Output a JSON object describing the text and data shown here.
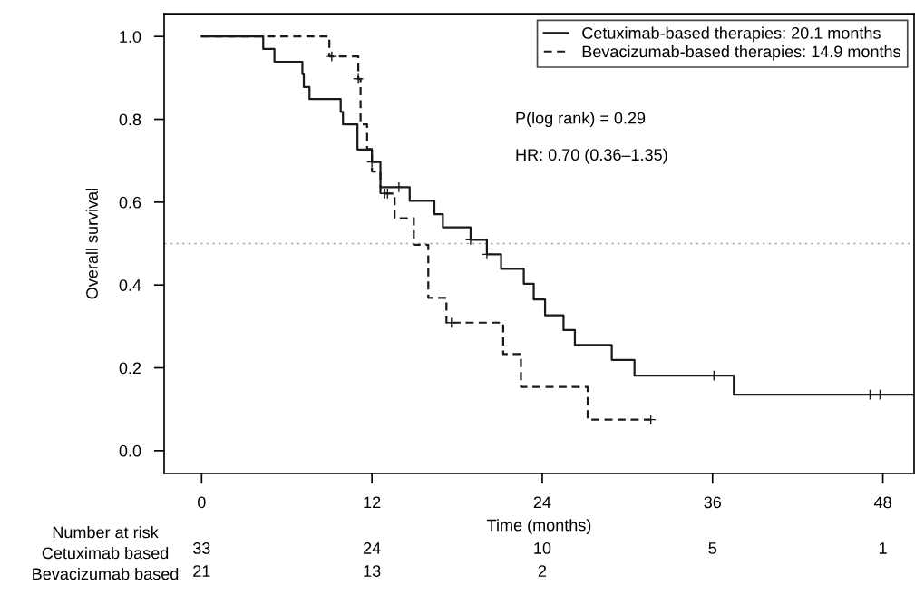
{
  "chart_data": {
    "type": "step",
    "xlabel": "Time (months)",
    "ylabel": "Overall survival",
    "xlim": [
      -2.64,
      50.2
    ],
    "ylim": [
      -0.055,
      1.055
    ],
    "xticks": [
      0,
      12,
      24,
      36,
      48
    ],
    "yticks": [
      {
        "value": 0,
        "label": "0.0"
      },
      {
        "value": 0.2,
        "label": "0.2"
      },
      {
        "value": 0.4,
        "label": "0.4"
      },
      {
        "value": 0.6,
        "label": "0.6"
      },
      {
        "value": 0.8,
        "label": "0.8"
      },
      {
        "value": 1,
        "label": "1.0"
      }
    ],
    "legend": "top right",
    "grid": false,
    "series": [
      {
        "name": "Cetuximab-based therapies: 20.1 months",
        "color": "#1a1a1a",
        "line_style": "solid",
        "x": [
          0,
          4.34,
          5.13,
          7.1,
          7.2,
          7.6,
          9.8,
          9.96,
          10.98,
          12.0,
          12.6,
          14.66,
          16.4,
          17.0,
          18.95,
          20.1,
          21.1,
          22.7,
          23.4,
          24.2,
          25.5,
          26.3,
          28.9,
          30.5,
          37.5,
          50.2
        ],
        "values": [
          1.0,
          0.97,
          0.939,
          0.909,
          0.878,
          0.849,
          0.818,
          0.788,
          0.727,
          0.697,
          0.636,
          0.603,
          0.571,
          0.539,
          0.509,
          0.474,
          0.439,
          0.403,
          0.365,
          0.327,
          0.291,
          0.255,
          0.219,
          0.181,
          0.135,
          0.135
        ]
      },
      {
        "name": "Bevacizumab-based therapies: 14.9 months",
        "color": "#1a1a1a",
        "line_style": "dashed",
        "x": [
          0,
          9.0,
          11.04,
          11.2,
          11.66,
          12.0,
          12.6,
          13.6,
          14.95,
          15.97,
          17.25,
          21.25,
          22.5,
          27.2,
          31.65
        ],
        "values": [
          1.0,
          0.952,
          0.898,
          0.788,
          0.728,
          0.674,
          0.621,
          0.561,
          0.497,
          0.369,
          0.309,
          0.233,
          0.154,
          0.075,
          0.075
        ]
      },
      {
        "type": "scatter",
        "marker": "cross",
        "color": "#1a1a1a",
        "x": [
          12.0,
          13.9,
          18.95,
          20.1,
          36.1,
          47.1,
          47.8
        ],
        "values": [
          0.697,
          0.636,
          0.509,
          0.474,
          0.181,
          0.135,
          0.135
        ]
      },
      {
        "type": "scatter",
        "marker": "cross",
        "color": "#1a1a1a",
        "x": [
          9.17,
          11.04,
          12.9,
          13.1,
          17.6,
          31.65
        ],
        "values": [
          0.952,
          0.898,
          0.621,
          0.621,
          0.309,
          0.075
        ]
      }
    ],
    "ref_lines": [
      {
        "axis": "y",
        "value": 0.5,
        "color": "#aaaaaa",
        "line_style": "dotted"
      }
    ],
    "annotations": [
      "P(log rank) = 0.29",
      "HR: 0.70 (0.36–1.35)",
      "Number at risk",
      "Cetuximab based",
      "Bevacizumab based",
      "33",
      "24",
      "10",
      "5",
      "1",
      "21",
      "13",
      "2"
    ]
  }
}
